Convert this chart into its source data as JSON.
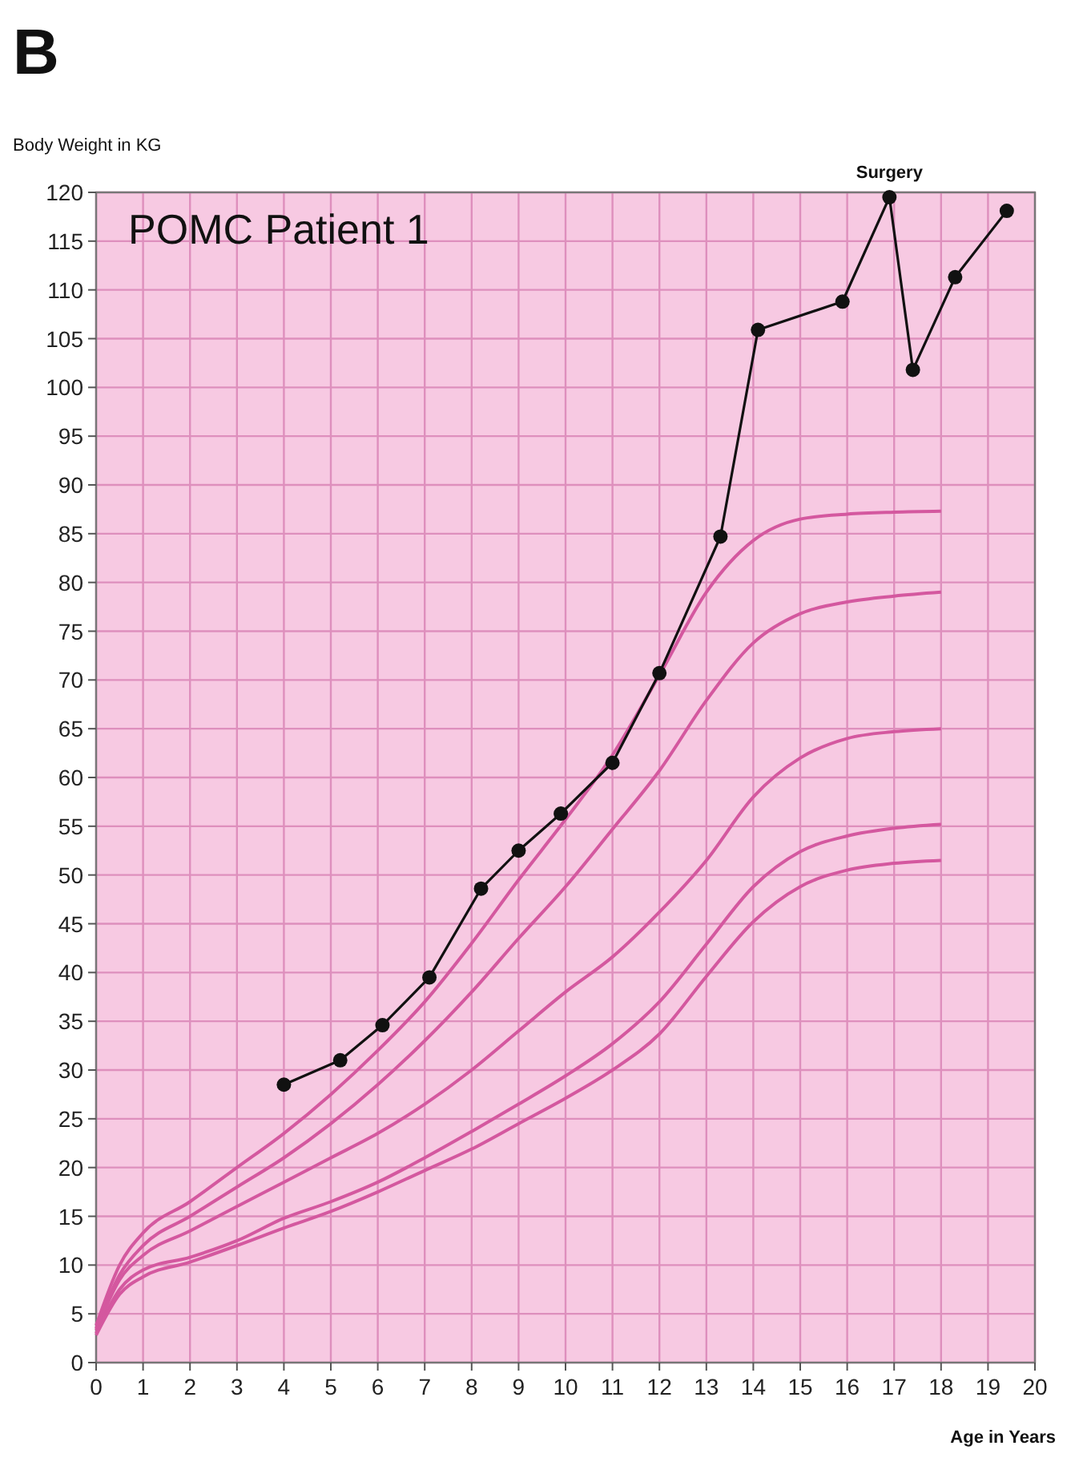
{
  "chart_data": {
    "type": "line",
    "title": "POMC Patient 1",
    "ylabel": "Body Weight in KG",
    "xlabel": "Age in Years",
    "annotations": [
      "B",
      {
        "text": "Surgery",
        "x": 16.9,
        "y": 119.5
      }
    ],
    "xlim": [
      0,
      20
    ],
    "xticks": [
      0,
      1,
      2,
      3,
      4,
      5,
      6,
      7,
      8,
      9,
      10,
      11,
      12,
      13,
      14,
      15,
      16,
      17,
      18,
      19,
      20
    ],
    "ylim": [
      0,
      120
    ],
    "yticks": [
      0,
      5,
      10,
      15,
      20,
      25,
      30,
      35,
      40,
      45,
      50,
      55,
      60,
      65,
      70,
      75,
      80,
      85,
      90,
      95,
      100,
      105,
      110,
      115,
      120
    ],
    "grid": true,
    "line_style": "solid",
    "series": [
      {
        "color": "#d4589f",
        "marker": "none",
        "x": [
          0,
          0.5,
          1,
          2,
          3,
          4,
          5,
          6,
          7,
          8,
          9,
          10,
          11,
          12,
          13,
          14,
          15,
          16,
          17,
          18
        ],
        "values": [
          3.8,
          10,
          13.3,
          16.5,
          20,
          23.5,
          27.5,
          32,
          37,
          43,
          49.5,
          55.7,
          62.3,
          70.5,
          79,
          84.3,
          86.5,
          87,
          87.2,
          87.3
        ]
      },
      {
        "color": "#d4589f",
        "marker": "none",
        "x": [
          0,
          0.5,
          1,
          2,
          3,
          4,
          5,
          6,
          7,
          8,
          9,
          10,
          11,
          12,
          13,
          14,
          15,
          16,
          17,
          18
        ],
        "values": [
          3.5,
          9,
          12,
          15,
          18,
          21,
          24.5,
          28.5,
          33,
          38,
          43.5,
          48.8,
          54.7,
          60.7,
          67.9,
          73.8,
          76.8,
          78,
          78.6,
          79
        ]
      },
      {
        "color": "#d4589f",
        "marker": "none",
        "x": [
          0,
          0.5,
          1,
          2,
          3,
          4,
          5,
          6,
          7,
          8,
          9,
          10,
          11,
          12,
          13,
          14,
          15,
          16,
          17,
          18
        ],
        "values": [
          3.3,
          8.5,
          11,
          13.5,
          16,
          18.5,
          21,
          23.5,
          26.5,
          30,
          34,
          38,
          41.6,
          46.2,
          51.5,
          58,
          62,
          64,
          64.7,
          65
        ]
      },
      {
        "color": "#d4589f",
        "marker": "none",
        "x": [
          0,
          0.5,
          1,
          2,
          3,
          4,
          5,
          6,
          7,
          8,
          9,
          10,
          11,
          12,
          13,
          14,
          15,
          16,
          17,
          18
        ],
        "values": [
          3,
          7.5,
          9.5,
          10.8,
          12.5,
          14.8,
          16.5,
          18.5,
          21,
          23.7,
          26.5,
          29.4,
          32.7,
          37,
          42.9,
          48.8,
          52.4,
          54,
          54.8,
          55.2
        ]
      },
      {
        "color": "#d4589f",
        "marker": "none",
        "x": [
          0,
          0.5,
          1,
          2,
          3,
          4,
          5,
          6,
          7,
          8,
          9,
          10,
          11,
          12,
          13,
          14,
          15,
          16,
          17,
          18
        ],
        "values": [
          2.8,
          7,
          8.8,
          10.3,
          12,
          13.8,
          15.5,
          17.5,
          19.7,
          21.9,
          24.5,
          27.1,
          30,
          33.7,
          39.6,
          45.2,
          48.8,
          50.5,
          51.2,
          51.5
        ]
      },
      {
        "color": "#111111",
        "marker": "circle",
        "x": [
          4,
          5.2,
          6.1,
          7.1,
          8.2,
          9,
          9.9,
          11,
          12,
          13.3,
          14.1,
          15.9,
          16.9,
          17.4,
          18.3,
          19.4
        ],
        "values": [
          28.5,
          31,
          34.6,
          39.5,
          48.6,
          52.5,
          56.3,
          61.5,
          70.7,
          84.7,
          105.9,
          108.8,
          119.5,
          101.8,
          111.3,
          118.1
        ]
      }
    ]
  }
}
